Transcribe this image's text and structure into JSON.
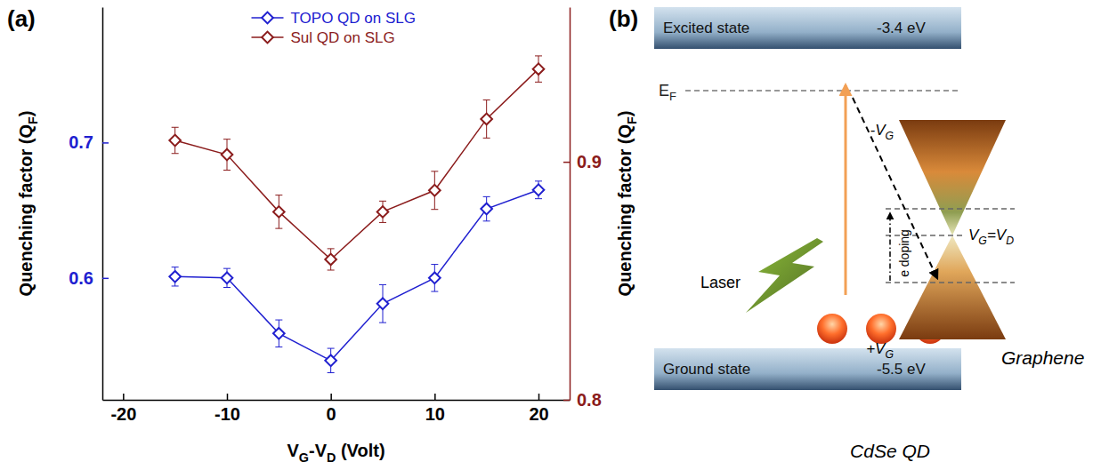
{
  "chart_data": {
    "type": "line",
    "panel_label": "(a)",
    "x_label": [
      {
        "text": "V"
      },
      {
        "text": "G",
        "sub": true
      },
      {
        "text": "-V"
      },
      {
        "text": "D",
        "sub": true
      },
      {
        "text": " (Volt)"
      }
    ],
    "y_label": [
      {
        "text": "Quenching factor (Q"
      },
      {
        "text": "F",
        "sub": true
      },
      {
        "text": ")"
      }
    ],
    "y2_label": [
      {
        "text": "Quenching factor (Q"
      },
      {
        "text": "F",
        "sub": true
      },
      {
        "text": ")"
      }
    ],
    "x": [
      -15,
      -10,
      -5,
      0,
      5,
      10,
      15,
      20
    ],
    "xlim": [
      -22,
      23
    ],
    "xticks": [
      -20,
      -10,
      0,
      10,
      20
    ],
    "ylim": [
      0.51,
      0.8
    ],
    "yticks": [
      0.6,
      0.7
    ],
    "y2lim": [
      0.8,
      0.965
    ],
    "y2ticks": [
      0.8,
      0.9
    ],
    "legend": "upper center",
    "series": [
      {
        "name": "TOPO QD on SLG",
        "color": "#2020d0",
        "marker": "diamond",
        "values": [
          0.601,
          0.6,
          0.559,
          0.539,
          0.581,
          0.6,
          0.651,
          0.665
        ],
        "errors": [
          0.007,
          0.007,
          0.01,
          0.009,
          0.014,
          0.01,
          0.009,
          0.0065
        ]
      },
      {
        "name": "Sul QD on SLG",
        "color": "#8b1c1c",
        "marker": "diamond",
        "axis": "y2",
        "values": [
          0.909,
          0.903,
          0.879,
          0.859,
          0.879,
          0.888,
          0.918,
          0.939
        ],
        "errors": [
          0.0055,
          0.0065,
          0.007,
          0.0045,
          0.0045,
          0.008,
          0.008,
          0.0055
        ]
      }
    ]
  },
  "diagram": {
    "panel_label": "(b)",
    "excited_state": {
      "label": "Excited state",
      "energy": "-3.4 eV"
    },
    "fermi_level": [
      {
        "text": "E"
      },
      {
        "text": "F",
        "sub": true
      }
    ],
    "ground_state": {
      "label": "Ground state",
      "energy": "-5.5 eV"
    },
    "laser": "Laser",
    "quantum_dot": "CdSe QD",
    "graphene": {
      "label": "Graphene",
      "gate_negative": [
        {
          "text": "-V"
        },
        {
          "text": "G",
          "sub": true
        }
      ],
      "gate_positive": [
        {
          "text": "+V"
        },
        {
          "text": "G",
          "sub": true
        }
      ],
      "dirac_point": [
        {
          "text": "V"
        },
        {
          "text": "G",
          "sub": true
        },
        {
          "text": "=V"
        },
        {
          "text": "D",
          "sub": true
        }
      ],
      "doping": "e doping"
    }
  }
}
